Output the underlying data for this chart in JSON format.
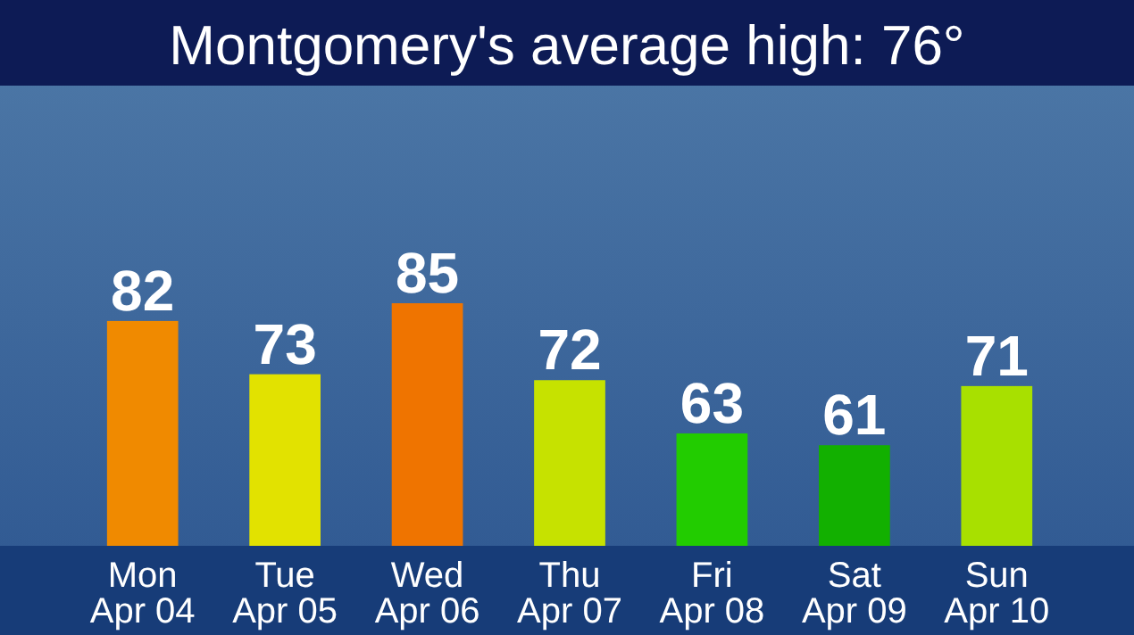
{
  "chart_data": {
    "type": "bar",
    "title": "Montgomery's average high: 76°",
    "categories": [
      "Mon\nApr 04",
      "Tue\nApr 05",
      "Wed\nApr 06",
      "Thu\nApr 07",
      "Fri\nApr 08",
      "Sat\nApr 09",
      "Sun\nApr 10"
    ],
    "values": [
      82,
      73,
      85,
      72,
      63,
      61,
      71
    ],
    "colors": [
      "#f08a00",
      "#e2e200",
      "#ef7400",
      "#c6e200",
      "#22cc00",
      "#12b000",
      "#a8e000"
    ],
    "ylim": [
      44,
      85
    ],
    "tick_labels": "x",
    "data_labels": true
  }
}
